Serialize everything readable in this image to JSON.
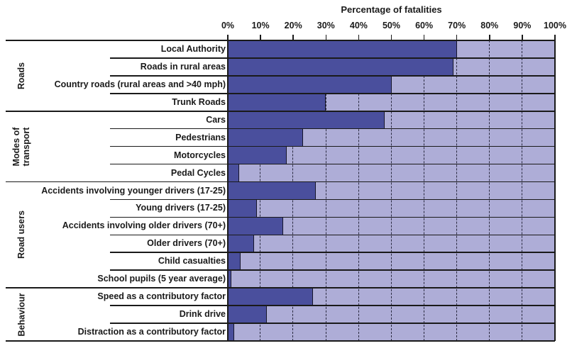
{
  "chart_data": {
    "type": "bar",
    "orientation": "horizontal",
    "title": "Percentage of fatalities",
    "xlabel": "Percentage of fatalities",
    "ylabel": "",
    "xlim": [
      0,
      100
    ],
    "x_ticks": [
      "0%",
      "10%",
      "20%",
      "30%",
      "40%",
      "50%",
      "60%",
      "70%",
      "80%",
      "90%",
      "100%"
    ],
    "grid": "vertical dashed gridlines every 10%",
    "legend": "none",
    "groups": [
      {
        "name": "Roads",
        "categories": [
          "Local Authority",
          "Roads in rural areas",
          "Country roads (rural areas and >40 mph)",
          "Trunk Roads"
        ],
        "values": [
          70,
          69,
          50,
          30
        ]
      },
      {
        "name": "Modes of transport",
        "categories": [
          "Cars",
          "Pedestrians",
          "Motorcycles",
          "Pedal Cycles"
        ],
        "values": [
          48,
          23,
          18,
          3.5
        ]
      },
      {
        "name": "Road users",
        "categories": [
          "Accidents involving younger drivers (17-25)",
          "Young drivers (17-25)",
          "Accidents involving older drivers (70+)",
          "Older drivers (70+)",
          "Child casualties",
          "School pupils (5 year average)"
        ],
        "values": [
          27,
          9,
          17,
          8,
          4,
          1
        ]
      },
      {
        "name": "Behaviour",
        "categories": [
          "Speed as a contributory factor",
          "Drink drive",
          "Distraction as a contributory factor"
        ],
        "values": [
          26,
          12,
          2
        ]
      }
    ],
    "colors": {
      "bar": "#4a4f9d",
      "track": "#aeadd7",
      "line": "#1a1a1a",
      "text": "#1a1a1a"
    }
  }
}
